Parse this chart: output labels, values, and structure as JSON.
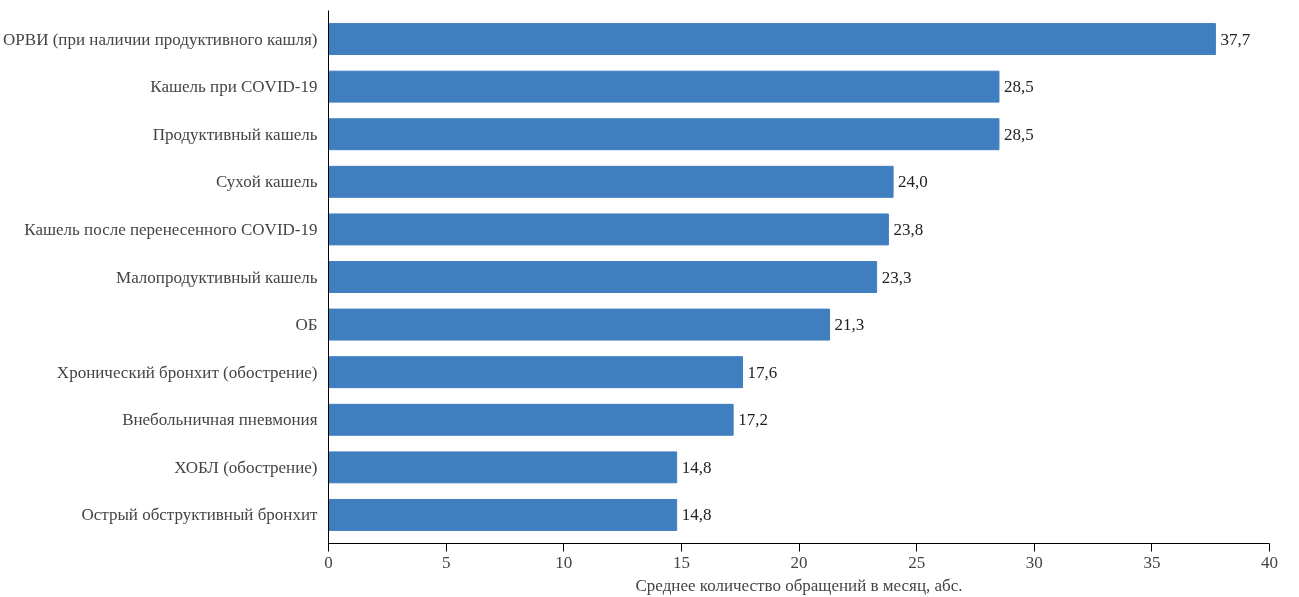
{
  "chart_data": {
    "type": "bar",
    "orientation": "horizontal",
    "xlabel": "Среднее количество обращений в месяц, абс.",
    "categories": [
      "ОРВИ (при наличии продуктивного кашля)",
      "Кашель при COVID-19",
      "Продуктивный кашель",
      "Сухой кашель",
      "Кашель после перенесенного COVID-19",
      "Малопродуктивный кашель",
      "ОБ",
      "Хронический бронхит (обострение)",
      "Внебольничная пневмония",
      "ХОБЛ (обострение)",
      "Острый обструктивный бронхит"
    ],
    "values": [
      37.7,
      28.5,
      28.5,
      24.0,
      23.8,
      23.3,
      21.3,
      17.6,
      17.2,
      14.8,
      14.8
    ],
    "value_labels": [
      "37,7",
      "28,5",
      "28,5",
      "24,0",
      "23,8",
      "23,3",
      "21,3",
      "17,6",
      "17,2",
      "14,8",
      "14,8"
    ],
    "color": "#3f7fc0",
    "xlim": [
      0,
      40
    ],
    "xticks": [
      0,
      5,
      10,
      15,
      20,
      25,
      30,
      35,
      40
    ]
  }
}
